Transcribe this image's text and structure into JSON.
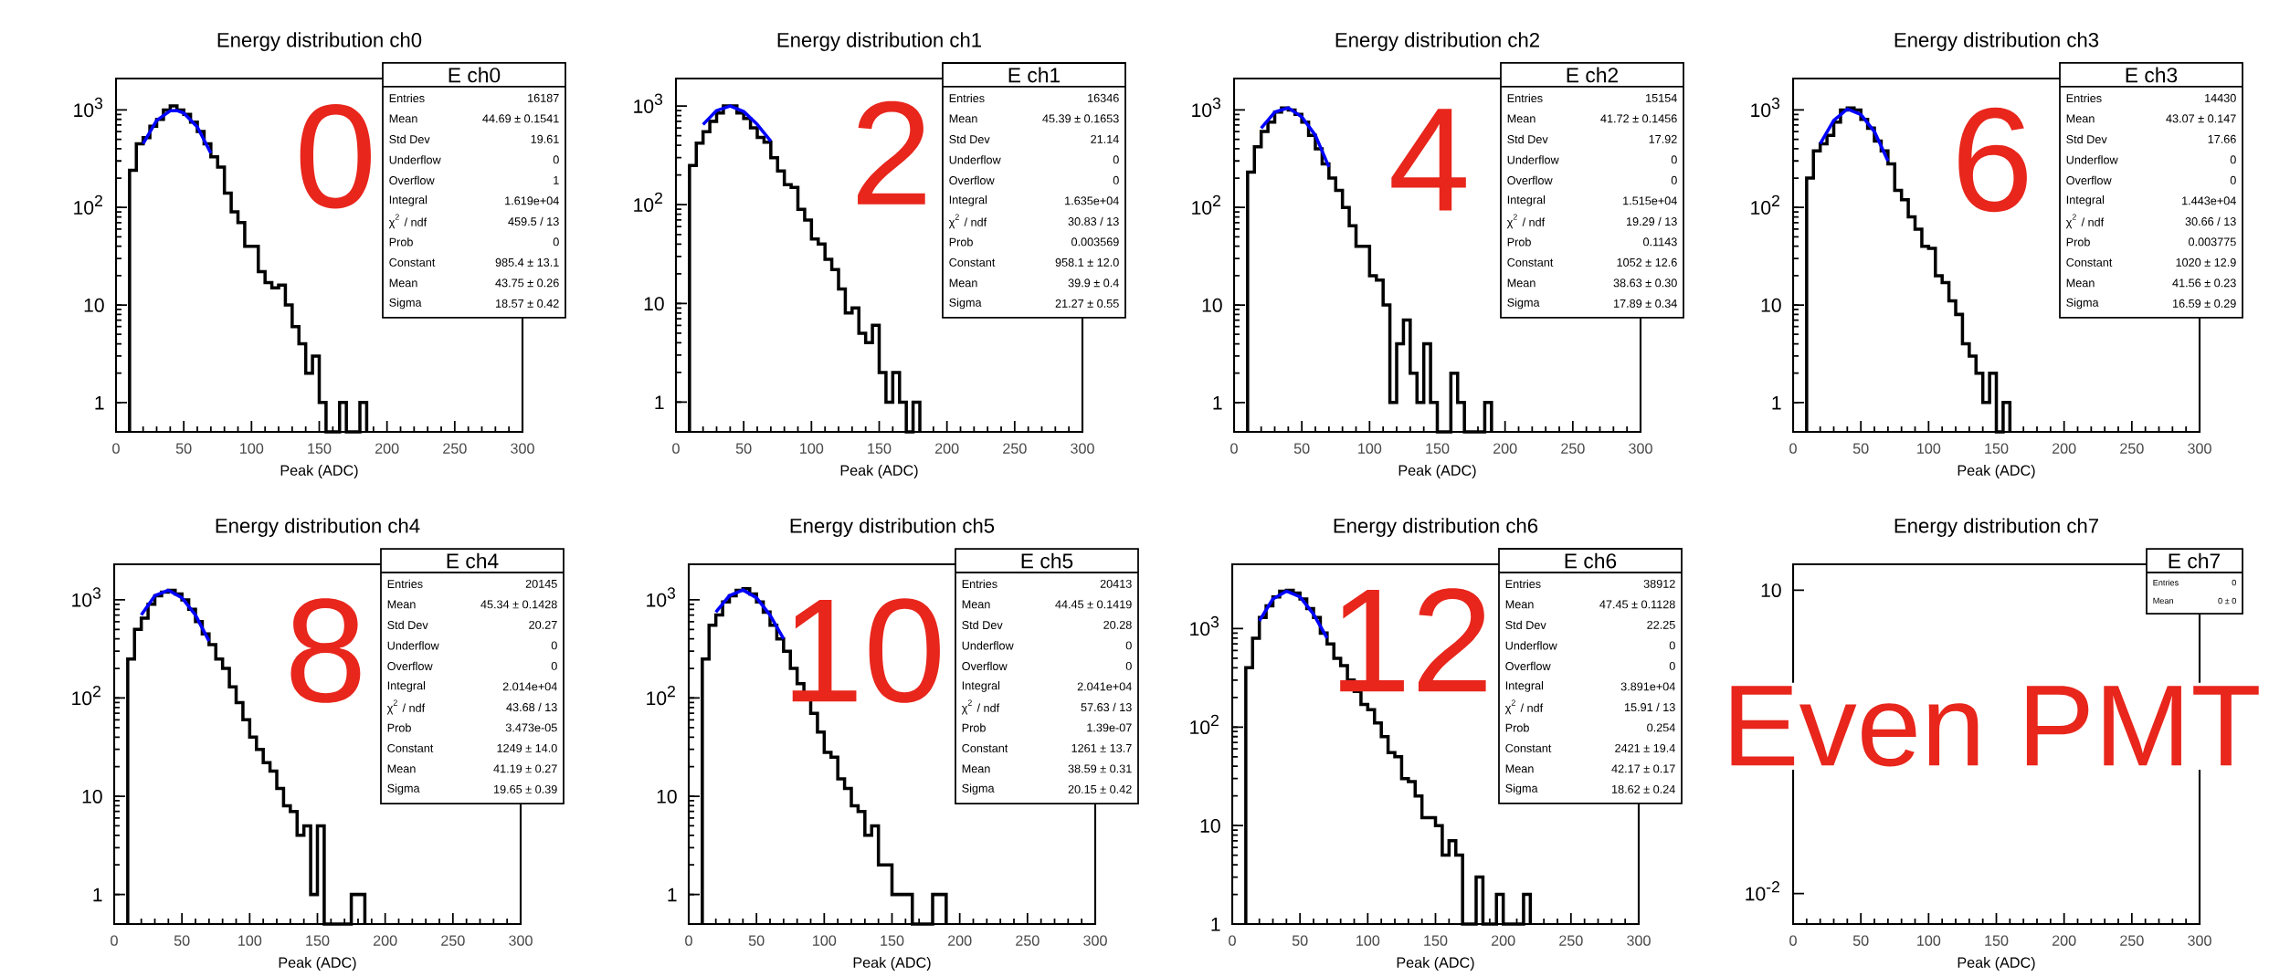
{
  "chart_data": [
    {
      "type": "histogram",
      "title": "Energy distribution ch0",
      "xlabel": "Peak (ADC)",
      "log": true,
      "bins": [
        10,
        15,
        20,
        25,
        30,
        35,
        40,
        45,
        50,
        55,
        60,
        65,
        70,
        75,
        80,
        85,
        90,
        95,
        100,
        105,
        110,
        115,
        120,
        125,
        130,
        135,
        140,
        145,
        150,
        155,
        160,
        165,
        170,
        175,
        180,
        185
      ],
      "series": [
        {
          "type": "histogram",
          "color": "#000000",
          "values": [
            240,
            450,
            520,
            680,
            800,
            1000,
            1100,
            1000,
            900,
            750,
            600,
            450,
            330,
            260,
            140,
            90,
            70,
            40,
            40,
            22,
            17,
            15,
            16,
            10,
            6,
            4,
            2,
            3,
            1,
            null,
            null,
            1,
            null,
            null,
            1
          ]
        },
        {
          "type": "line",
          "color": "#0000ff",
          "x": [
            20,
            30,
            40,
            45,
            50,
            60,
            70
          ],
          "values": [
            450,
            780,
            980,
            985,
            930,
            670,
            360
          ]
        }
      ],
      "xlim": [
        0,
        300
      ],
      "xticks": [
        0,
        50,
        100,
        150,
        200,
        250,
        300
      ],
      "ylim": [
        0.5,
        2100
      ],
      "yticks": [
        1,
        10,
        {
          "value": 100,
          "label": "10$^{2}$"
        },
        {
          "value": 1000,
          "label": "10$^{3}$"
        }
      ],
      "annotations": [
        "0",
        "E ch0",
        "Entries",
        "16187",
        "Mean",
        "44.69 ± 0.1541",
        "Std Dev",
        "19.61",
        "Underflow",
        "0",
        "Overflow",
        "1",
        "Integral",
        "1.619e+04",
        "χ$^{2}$ / ndf",
        "459.5 / 13",
        "Prob",
        "0",
        "Constant",
        "985.4 ± 13.1",
        "Mean",
        "43.75 ± 0.26",
        "Sigma",
        "18.57 ± 0.42"
      ]
    },
    {
      "type": "histogram",
      "title": "Energy distribution ch1",
      "xlabel": "Peak (ADC)",
      "log": true,
      "bins": [
        10,
        15,
        20,
        25,
        30,
        35,
        40,
        45,
        50,
        55,
        60,
        65,
        70,
        75,
        80,
        85,
        90,
        95,
        100,
        105,
        110,
        115,
        120,
        125,
        130,
        135,
        140,
        145,
        150,
        155,
        160,
        165,
        170,
        175,
        180
      ],
      "series": [
        {
          "type": "histogram",
          "color": "#000000",
          "values": [
            250,
            420,
            550,
            700,
            850,
            1000,
            1000,
            850,
            750,
            600,
            480,
            430,
            300,
            220,
            160,
            150,
            90,
            70,
            45,
            40,
            28,
            22,
            14,
            8,
            9,
            5,
            4,
            6,
            2,
            1,
            2,
            1,
            null,
            1
          ]
        },
        {
          "type": "line",
          "color": "#0000ff",
          "x": [
            20,
            30,
            40,
            50,
            60,
            70
          ],
          "values": [
            650,
            900,
            1000,
            880,
            650,
            440
          ]
        }
      ],
      "xlim": [
        0,
        300
      ],
      "xticks": [
        0,
        50,
        100,
        150,
        200,
        250,
        300
      ],
      "ylim": [
        0.5,
        1900
      ],
      "yticks": [
        1,
        10,
        {
          "value": 100,
          "label": "10$^{2}$"
        },
        {
          "value": 1000,
          "label": "10$^{3}$"
        }
      ],
      "annotations": [
        "2",
        "E ch1",
        "Entries",
        "16346",
        "Mean",
        "45.39 ± 0.1653",
        "Std Dev",
        "21.14",
        "Underflow",
        "0",
        "Overflow",
        "0",
        "Integral",
        "1.635e+04",
        "χ$^{2}$ / ndf",
        "30.83 / 13",
        "Prob",
        "0.003569",
        "Constant",
        "958.1 ± 12.0",
        "Mean",
        "39.9 ± 0.4",
        "Sigma",
        "21.27 ± 0.55"
      ]
    },
    {
      "type": "histogram",
      "title": "Energy distribution ch2",
      "xlabel": "Peak (ADC)",
      "log": true,
      "bins": [
        10,
        15,
        20,
        25,
        30,
        35,
        40,
        45,
        50,
        55,
        60,
        65,
        70,
        75,
        80,
        85,
        90,
        95,
        100,
        105,
        110,
        115,
        120,
        125,
        130,
        135,
        140,
        145,
        150,
        155,
        160,
        165,
        170,
        175,
        180,
        185,
        190
      ],
      "series": [
        {
          "type": "histogram",
          "color": "#000000",
          "values": [
            230,
            420,
            600,
            750,
            950,
            1050,
            1000,
            900,
            750,
            550,
            400,
            280,
            200,
            150,
            100,
            65,
            40,
            40,
            20,
            18,
            10,
            1,
            4,
            7,
            2,
            1,
            4,
            1,
            null,
            null,
            2,
            1,
            null,
            null,
            null,
            1
          ]
        },
        {
          "type": "line",
          "color": "#0000ff",
          "x": [
            20,
            30,
            40,
            50,
            60,
            70
          ],
          "values": [
            650,
            950,
            1050,
            850,
            550,
            260
          ]
        }
      ],
      "xlim": [
        0,
        300
      ],
      "xticks": [
        0,
        50,
        100,
        150,
        200,
        250,
        300
      ],
      "ylim": [
        0.5,
        2100
      ],
      "yticks": [
        1,
        10,
        {
          "value": 100,
          "label": "10$^{2}$"
        },
        {
          "value": 1000,
          "label": "10$^{3}$"
        }
      ],
      "annotations": [
        "4",
        "E ch2",
        "Entries",
        "15154",
        "Mean",
        "41.72 ± 0.1456",
        "Std Dev",
        "17.92",
        "Underflow",
        "0",
        "Overflow",
        "0",
        "Integral",
        "1.515e+04",
        "χ$^{2}$ / ndf",
        "19.29 / 13",
        "Prob",
        "0.1143",
        "Constant",
        "1052 ± 12.6",
        "Mean",
        "38.63 ± 0.30",
        "Sigma",
        "17.89 ± 0.34"
      ]
    },
    {
      "type": "histogram",
      "title": "Energy distribution ch3",
      "xlabel": "Peak (ADC)",
      "log": true,
      "bins": [
        10,
        15,
        20,
        25,
        30,
        35,
        40,
        45,
        50,
        55,
        60,
        65,
        70,
        75,
        80,
        85,
        90,
        95,
        100,
        105,
        110,
        115,
        120,
        125,
        130,
        135,
        140,
        145,
        150,
        155,
        160
      ],
      "series": [
        {
          "type": "histogram",
          "color": "#000000",
          "values": [
            200,
            380,
            450,
            550,
            750,
            1000,
            1050,
            1000,
            800,
            650,
            480,
            380,
            280,
            150,
            120,
            80,
            60,
            40,
            38,
            20,
            17,
            11,
            8,
            4,
            3,
            2,
            1,
            2,
            null,
            1
          ]
        },
        {
          "type": "line",
          "color": "#0000ff",
          "x": [
            20,
            30,
            40,
            50,
            60,
            70
          ],
          "values": [
            450,
            780,
            1020,
            900,
            600,
            300
          ]
        }
      ],
      "xlim": [
        0,
        300
      ],
      "xticks": [
        0,
        50,
        100,
        150,
        200,
        250,
        300
      ],
      "ylim": [
        0.5,
        2100
      ],
      "yticks": [
        1,
        10,
        {
          "value": 100,
          "label": "10$^{2}$"
        },
        {
          "value": 1000,
          "label": "10$^{3}$"
        }
      ],
      "annotations": [
        "6",
        "E ch3",
        "Entries",
        "14430",
        "Mean",
        "43.07 ± 0.147",
        "Std Dev",
        "17.66",
        "Underflow",
        "0",
        "Overflow",
        "0",
        "Integral",
        "1.443e+04",
        "χ$^{2}$ / ndf",
        "30.66 / 13",
        "Prob",
        "0.003775",
        "Constant",
        "1020 ± 12.9",
        "Mean",
        "41.56 ± 0.23",
        "Sigma",
        "16.59 ± 0.29"
      ]
    },
    {
      "type": "histogram",
      "title": "Energy distribution ch4",
      "xlabel": "Peak (ADC)",
      "log": true,
      "bins": [
        10,
        15,
        20,
        25,
        30,
        35,
        40,
        45,
        50,
        55,
        60,
        65,
        70,
        75,
        80,
        85,
        90,
        95,
        100,
        105,
        110,
        115,
        120,
        125,
        130,
        135,
        140,
        145,
        150,
        155,
        160,
        165,
        170,
        175,
        180,
        185
      ],
      "series": [
        {
          "type": "histogram",
          "color": "#000000",
          "values": [
            250,
            500,
            650,
            900,
            1100,
            1200,
            1250,
            1150,
            1000,
            800,
            600,
            450,
            350,
            250,
            200,
            130,
            90,
            60,
            40,
            30,
            22,
            18,
            12,
            8,
            7,
            4,
            5,
            1,
            5,
            null,
            null,
            null,
            null,
            1,
            1
          ]
        },
        {
          "type": "line",
          "color": "#0000ff",
          "x": [
            20,
            30,
            40,
            50,
            60,
            70
          ],
          "values": [
            700,
            1100,
            1250,
            1050,
            700,
            380
          ]
        }
      ],
      "xlim": [
        0,
        300
      ],
      "xticks": [
        0,
        50,
        100,
        150,
        200,
        250,
        300
      ],
      "ylim": [
        0.5,
        2300
      ],
      "yticks": [
        1,
        10,
        {
          "value": 100,
          "label": "10$^{2}$"
        },
        {
          "value": 1000,
          "label": "10$^{3}$"
        }
      ],
      "annotations": [
        "8",
        "E ch4",
        "Entries",
        "20145",
        "Mean",
        "45.34 ± 0.1428",
        "Std Dev",
        "20.27",
        "Underflow",
        "0",
        "Overflow",
        "0",
        "Integral",
        "2.014e+04",
        "χ$^{2}$ / ndf",
        "43.68 / 13",
        "Prob",
        "3.473e-05",
        "Constant",
        "1249 ± 14.0",
        "Mean",
        "41.19 ± 0.27",
        "Sigma",
        "19.65 ± 0.39"
      ]
    },
    {
      "type": "histogram",
      "title": "Energy distribution ch5",
      "xlabel": "Peak (ADC)",
      "log": true,
      "bins": [
        10,
        15,
        20,
        25,
        30,
        35,
        40,
        45,
        50,
        55,
        60,
        65,
        70,
        75,
        80,
        85,
        90,
        95,
        100,
        105,
        110,
        115,
        120,
        125,
        130,
        135,
        140,
        145,
        150,
        155,
        160,
        165,
        170,
        175,
        180,
        185,
        190
      ],
      "series": [
        {
          "type": "histogram",
          "color": "#000000",
          "values": [
            250,
            550,
            700,
            950,
            1100,
            1250,
            1300,
            1150,
            950,
            750,
            550,
            400,
            300,
            200,
            140,
            100,
            70,
            45,
            28,
            25,
            15,
            12,
            8,
            7,
            4,
            5,
            2,
            2,
            1,
            1,
            1,
            null,
            null,
            null,
            1,
            1
          ]
        },
        {
          "type": "line",
          "color": "#0000ff",
          "x": [
            20,
            30,
            40,
            50,
            60,
            70
          ],
          "values": [
            750,
            1100,
            1260,
            1050,
            700,
            400
          ]
        }
      ],
      "xlim": [
        0,
        300
      ],
      "xticks": [
        0,
        50,
        100,
        150,
        200,
        250,
        300
      ],
      "ylim": [
        0.5,
        2300
      ],
      "yticks": [
        1,
        10,
        {
          "value": 100,
          "label": "10$^{2}$"
        },
        {
          "value": 1000,
          "label": "10$^{3}$"
        }
      ],
      "annotations": [
        "10",
        "E ch5",
        "Entries",
        "20413",
        "Mean",
        "44.45 ± 0.1419",
        "Std Dev",
        "20.28",
        "Underflow",
        "0",
        "Overflow",
        "0",
        "Integral",
        "2.041e+04",
        "χ$^{2}$ / ndf",
        "57.63 / 13",
        "Prob",
        "1.39e-07",
        "Constant",
        "1261 ± 13.7",
        "Mean",
        "38.59 ± 0.31",
        "Sigma",
        "20.15 ± 0.42"
      ]
    },
    {
      "type": "histogram",
      "title": "Energy distribution ch6",
      "xlabel": "Peak (ADC)",
      "log": true,
      "bins": [
        10,
        15,
        20,
        25,
        30,
        35,
        40,
        45,
        50,
        55,
        60,
        65,
        70,
        75,
        80,
        85,
        90,
        95,
        100,
        105,
        110,
        115,
        120,
        125,
        130,
        135,
        140,
        145,
        150,
        155,
        160,
        165,
        170,
        175,
        180,
        185,
        190,
        195,
        200,
        205,
        210,
        215,
        220
      ],
      "series": [
        {
          "type": "histogram",
          "color": "#000000",
          "values": [
            400,
            800,
            1300,
            1700,
            2100,
            2400,
            2450,
            2300,
            2000,
            1600,
            1300,
            900,
            700,
            500,
            420,
            300,
            230,
            170,
            150,
            110,
            80,
            55,
            50,
            30,
            28,
            20,
            12,
            12,
            10,
            5,
            7,
            5,
            null,
            1,
            3,
            1,
            null,
            2,
            1,
            null,
            null,
            2
          ]
        },
        {
          "type": "line",
          "color": "#0000ff",
          "x": [
            20,
            30,
            40,
            50,
            60,
            70
          ],
          "values": [
            1200,
            2000,
            2400,
            2100,
            1400,
            800
          ]
        }
      ],
      "xlim": [
        0,
        300
      ],
      "xticks": [
        0,
        50,
        100,
        150,
        200,
        250,
        300
      ],
      "ylim": [
        1,
        4500
      ],
      "yticks": [
        1,
        10,
        {
          "value": 100,
          "label": "10$^{2}$"
        },
        {
          "value": 1000,
          "label": "10$^{3}$"
        }
      ],
      "annotations": [
        "12",
        "E ch6",
        "Entries",
        "38912",
        "Mean",
        "47.45 ± 0.1128",
        "Std Dev",
        "22.25",
        "Underflow",
        "0",
        "Overflow",
        "0",
        "Integral",
        "3.891e+04",
        "χ$^{2}$ / ndf",
        "15.91 / 13",
        "Prob",
        "0.254",
        "Constant",
        "2421 ± 19.4",
        "Mean",
        "42.17 ± 0.17",
        "Sigma",
        "18.62 ± 0.24"
      ]
    },
    {
      "type": "histogram",
      "title": "Energy distribution ch7",
      "xlabel": "Peak (ADC)",
      "log": true,
      "xlim": [
        0,
        300
      ],
      "xticks": [
        0,
        50,
        100,
        150,
        200,
        250,
        300
      ],
      "ylim": [
        0.005,
        18
      ],
      "yticks": [
        {
          "value": 0.01,
          "label": "10$^{-2}$"
        },
        10
      ],
      "annotations": [
        "Even PMT",
        "E ch7",
        "Entries",
        "0",
        "Mean",
        "0 ± 0"
      ]
    }
  ]
}
